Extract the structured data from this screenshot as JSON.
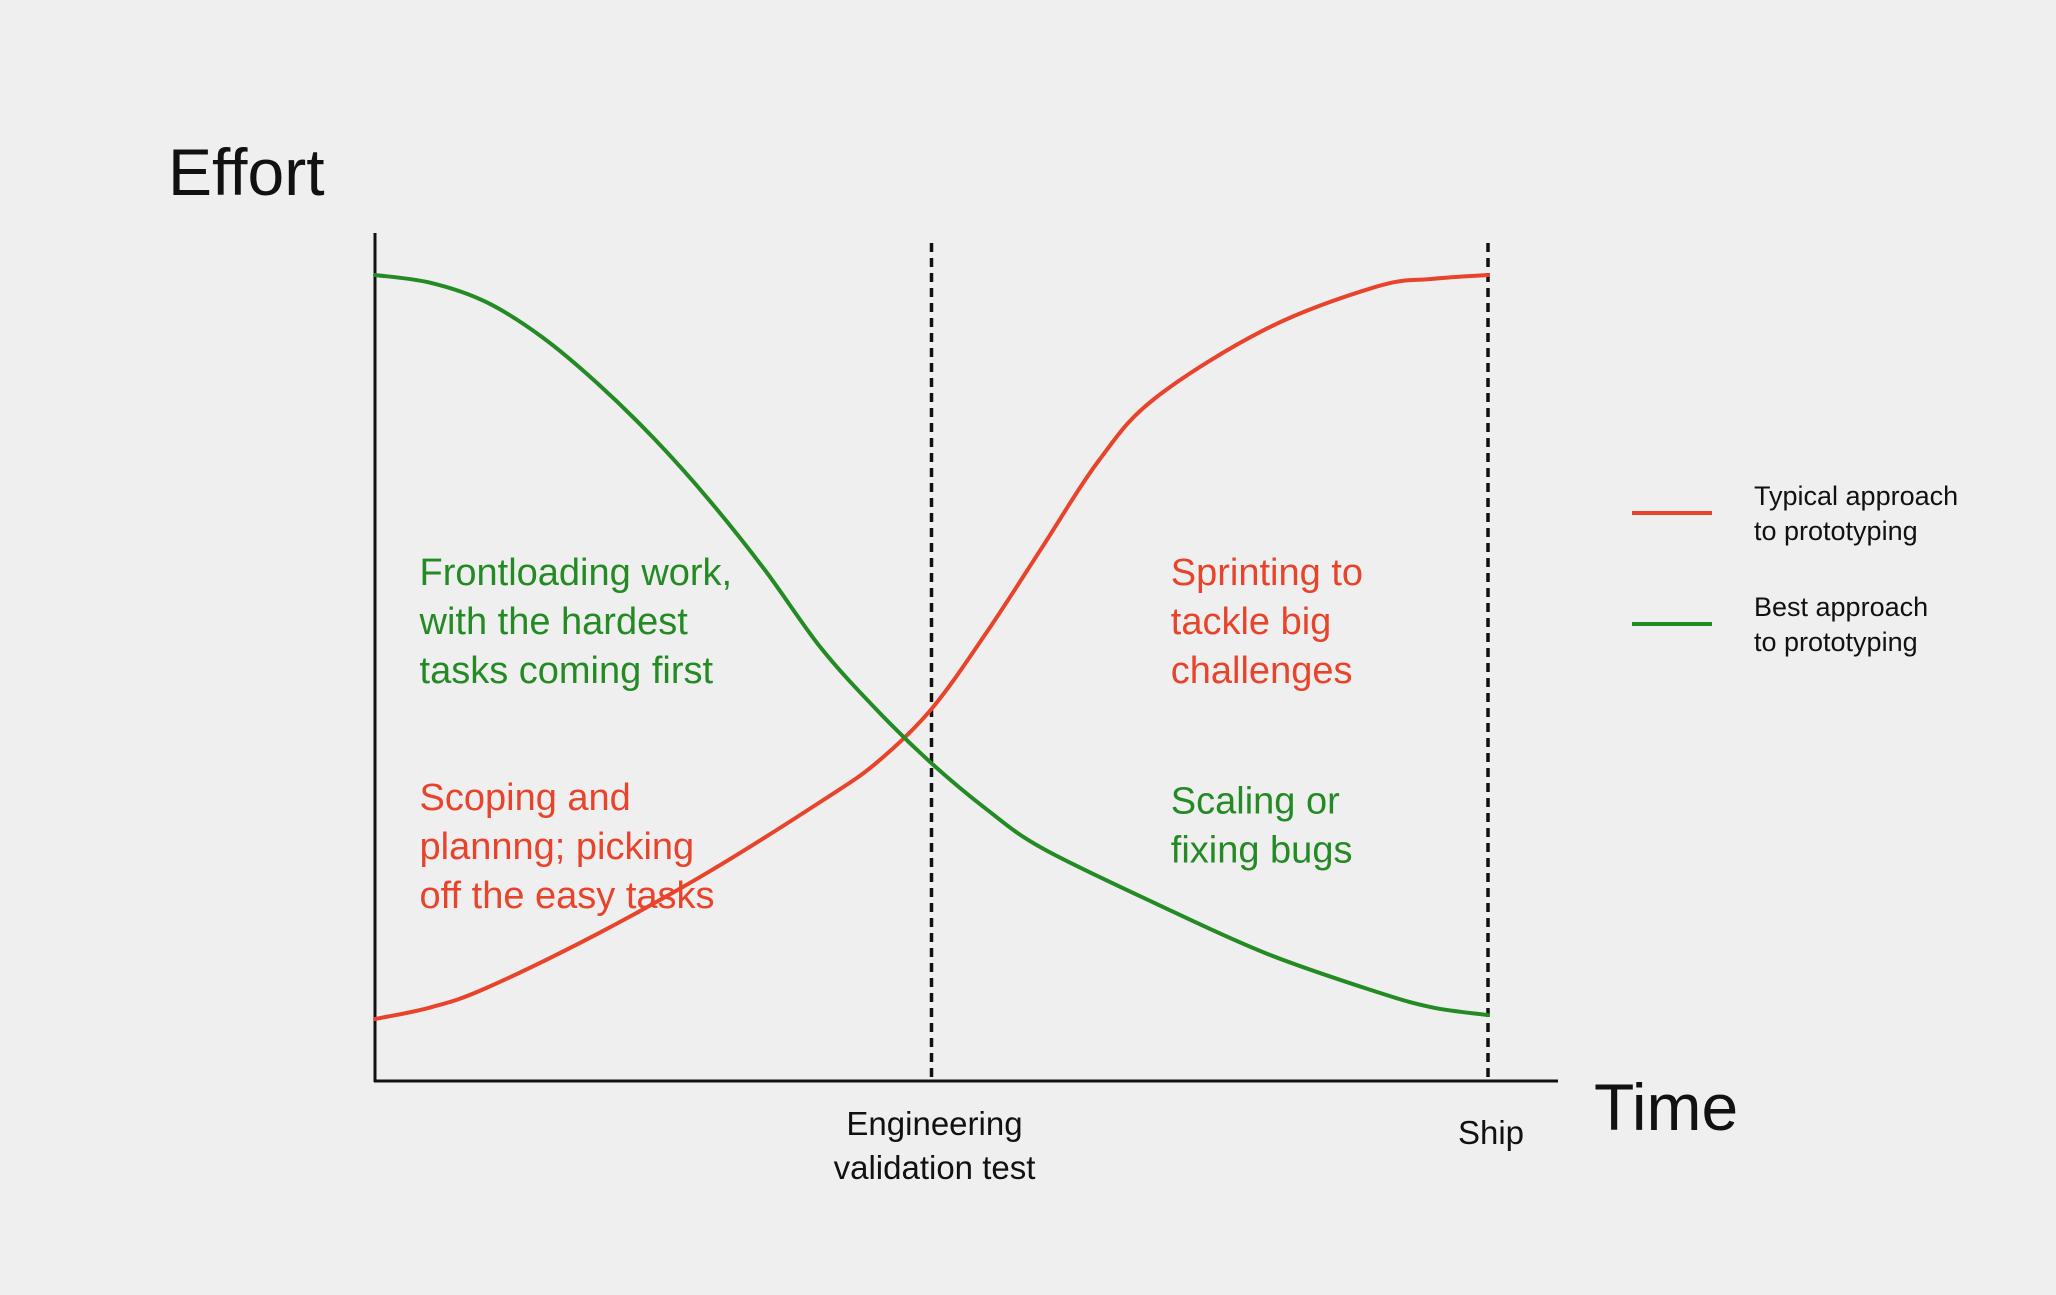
{
  "colors": {
    "background": "#efefef",
    "axis": "#111111",
    "typical": "#e8432b",
    "best": "#248a24"
  },
  "chart_data": {
    "type": "line",
    "title": "",
    "ylabel": "Effort",
    "xlabel": "Time",
    "xlim": [
      0,
      1
    ],
    "ylim": [
      0,
      1
    ],
    "grid": false,
    "axis_ticks_shown": false,
    "legend_position": "right",
    "milestones": [
      {
        "x": 0.5,
        "lines": [
          "Engineering",
          "validation test"
        ]
      },
      {
        "x": 1.0,
        "lines": [
          "Ship"
        ]
      }
    ],
    "series": [
      {
        "name_lines": [
          "Typical approach",
          "to prototyping"
        ],
        "color": "#e8432b",
        "x": [
          0,
          0.05,
          0.1,
          0.2,
          0.3,
          0.4,
          0.45,
          0.5,
          0.55,
          0.6,
          0.65,
          0.7,
          0.8,
          0.9,
          0.95,
          1.0
        ],
        "y": [
          0.04,
          0.055,
          0.08,
          0.15,
          0.23,
          0.32,
          0.37,
          0.44,
          0.54,
          0.65,
          0.76,
          0.84,
          0.93,
          0.985,
          0.995,
          1.0
        ]
      },
      {
        "name_lines": [
          "Best approach",
          "to prototyping"
        ],
        "color": "#248a24",
        "x": [
          0,
          0.05,
          0.1,
          0.15,
          0.2,
          0.25,
          0.3,
          0.35,
          0.4,
          0.45,
          0.5,
          0.55,
          0.6,
          0.7,
          0.8,
          0.9,
          0.95,
          1.0
        ],
        "y": [
          1.0,
          0.99,
          0.965,
          0.92,
          0.86,
          0.79,
          0.71,
          0.62,
          0.52,
          0.44,
          0.37,
          0.31,
          0.26,
          0.19,
          0.125,
          0.075,
          0.055,
          0.045
        ]
      }
    ],
    "annotations": [
      {
        "lines": [
          "Frontloading work,",
          "with the hardest",
          "tasks coming first"
        ],
        "color": "#248a24",
        "x": 0.04,
        "y": 0.6
      },
      {
        "lines": [
          "Scoping and",
          "plannng; picking",
          "off the easy tasks"
        ],
        "color": "#e8432b",
        "x": 0.04,
        "y": 0.31
      },
      {
        "lines": [
          "Sprinting to",
          "tackle big",
          "challenges"
        ],
        "color": "#e8432b",
        "x": 0.715,
        "y": 0.6
      },
      {
        "lines": [
          "Scaling or",
          "fixing bugs"
        ],
        "color": "#248a24",
        "x": 0.715,
        "y": 0.305
      }
    ]
  }
}
